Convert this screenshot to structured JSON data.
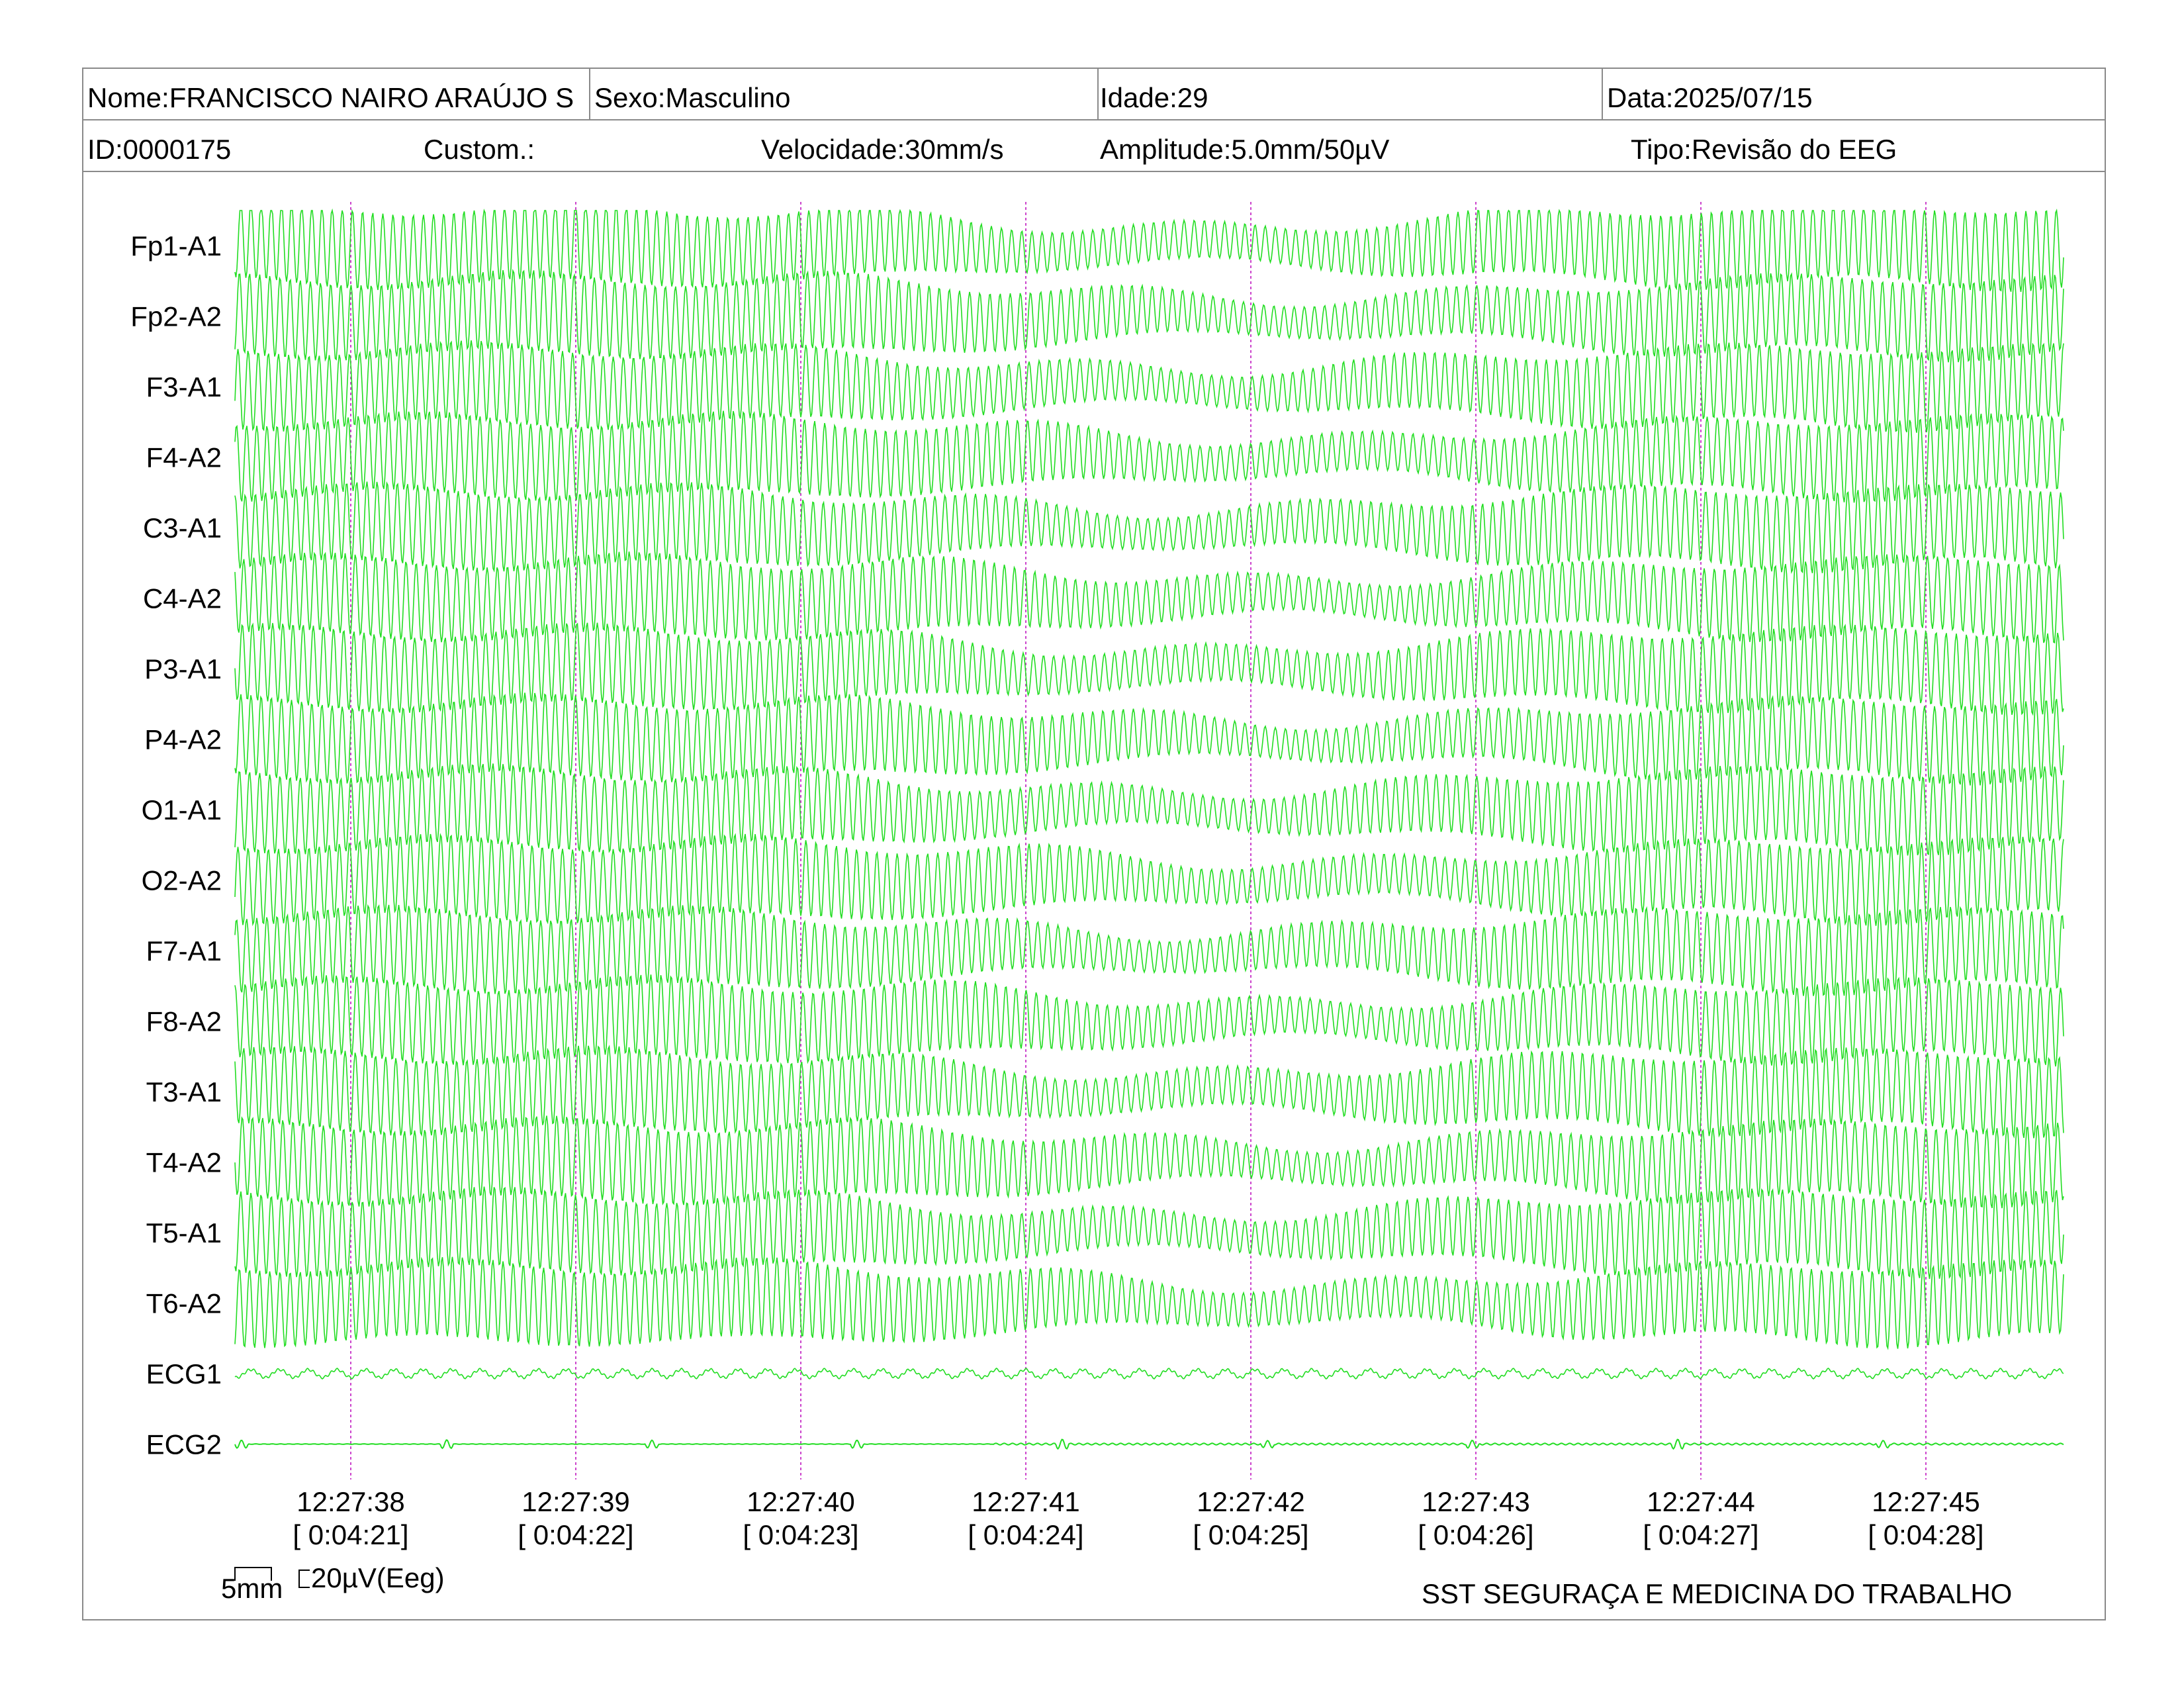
{
  "header": {
    "name": "Nome:FRANCISCO NAIRO ARAÚJO S",
    "sex": "Sexo:Masculino",
    "age": "Idade:29",
    "date": "Data:2025/07/15",
    "id": "ID:0000175",
    "custom": "Custom.:",
    "speed": "Velocidade:30mm/s",
    "amplitude": "Amplitude:5.0mm/50µV",
    "type": "Tipo:Revisão do EEG"
  },
  "footer": {
    "scale_time": "5mm",
    "scale_amp": "20µV(Eeg)",
    "company": "SST SEGURAÇA E MEDICINA DO TRABALHO"
  },
  "colors": {
    "trace": "#22dd22",
    "marker": "#cc44cc",
    "border": "#8a8a8a"
  },
  "chart_data": {
    "type": "line",
    "channels": [
      "Fp1-A1",
      "Fp2-A2",
      "F3-A1",
      "F4-A2",
      "C3-A1",
      "C4-A2",
      "P3-A1",
      "P4-A2",
      "O1-A1",
      "O2-A2",
      "F7-A1",
      "F8-A2",
      "T3-A1",
      "T4-A2",
      "T5-A1",
      "T6-A2",
      "ECG1",
      "ECG2"
    ],
    "time_ticks": [
      "12:27:38",
      "12:27:39",
      "12:27:40",
      "12:27:41",
      "12:27:42",
      "12:27:43",
      "12:27:44",
      "12:27:45"
    ],
    "elapsed_ticks": [
      "[ 0:04:21]",
      "[ 0:04:22]",
      "[ 0:04:23]",
      "[ 0:04:24]",
      "[ 0:04:25]",
      "[ 0:04:26]",
      "[ 0:04:27]",
      "[ 0:04:28]"
    ],
    "x_range_seconds": [
      0.5,
      8.6
    ],
    "sweep_speed": "30mm/s",
    "grid": false,
    "trace_color": "#22dd22",
    "marker_color": "#cc44cc"
  }
}
